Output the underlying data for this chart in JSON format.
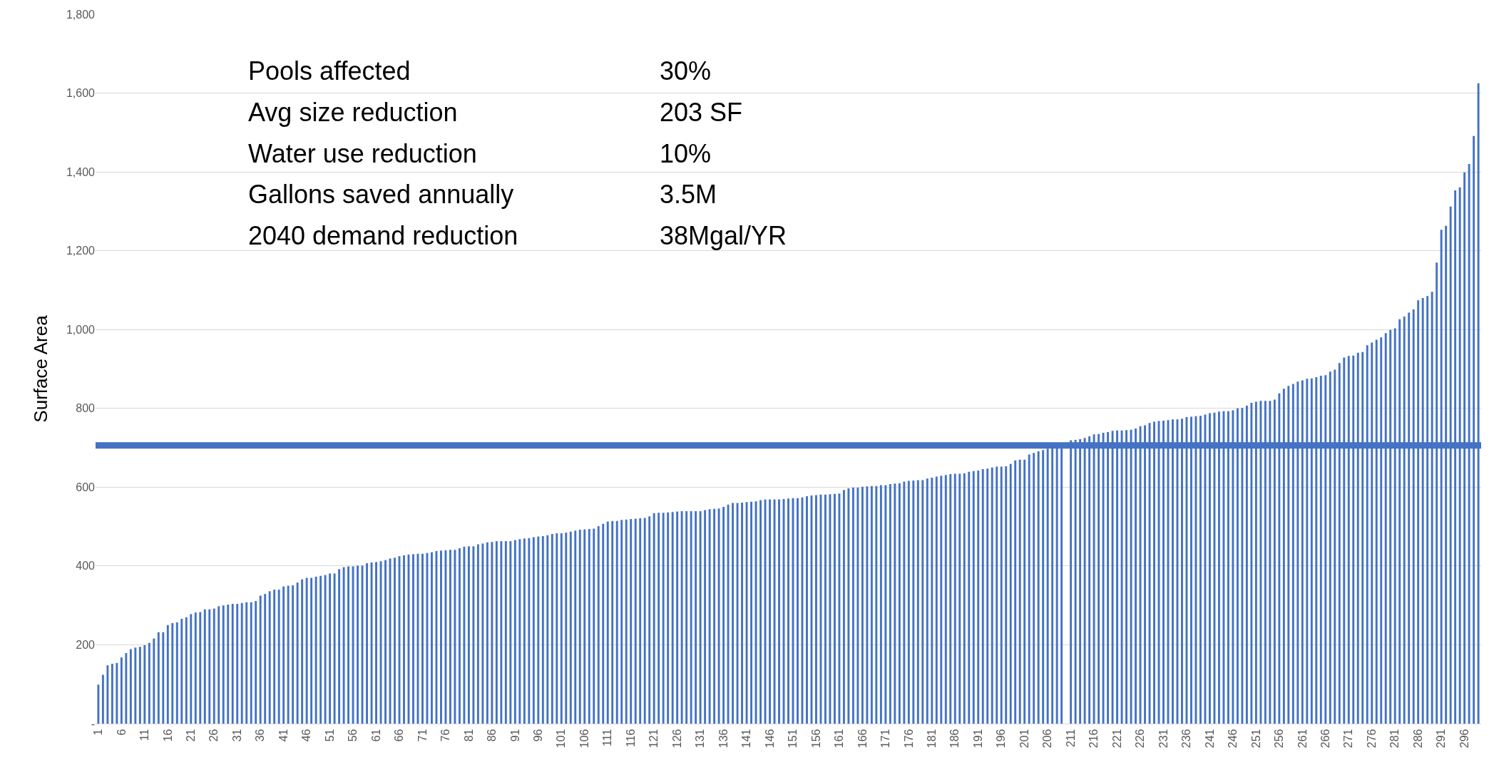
{
  "chart_data": {
    "type": "bar",
    "ylabel": "Surface Area",
    "color": "#4472c4",
    "ylim": [
      0,
      1800
    ],
    "yticks": [
      {
        "value": 0,
        "label": "-"
      },
      200,
      400,
      600,
      800,
      {
        "value": 1000,
        "label": "1,000"
      },
      {
        "value": 1200,
        "label": "1,200"
      },
      {
        "value": 1400,
        "label": "1,400"
      },
      {
        "value": 1600,
        "label": "1,600"
      },
      {
        "value": 1800,
        "label": "1,800"
      }
    ],
    "grid": "y",
    "ref_lines": [
      {
        "axis": "y",
        "value": 706,
        "color": "#4472c4"
      }
    ],
    "annotations": [
      "Pools affected",
      "30%",
      "Avg size reduction",
      "203 SF",
      "Water use reduction",
      "10%",
      "Gallons saved annually",
      "3.5M",
      "2040 demand reduction",
      "38Mgal/YR"
    ],
    "categories": [
      "1",
      null,
      null,
      null,
      null,
      "6",
      null,
      null,
      null,
      null,
      "11",
      null,
      null,
      null,
      null,
      "16",
      null,
      null,
      null,
      null,
      "21",
      null,
      null,
      null,
      null,
      "26",
      null,
      null,
      null,
      null,
      "31",
      null,
      null,
      null,
      null,
      "36",
      null,
      null,
      null,
      null,
      "41",
      null,
      null,
      null,
      null,
      "46",
      null,
      null,
      null,
      null,
      "51",
      null,
      null,
      null,
      null,
      "56",
      null,
      null,
      null,
      null,
      "61",
      null,
      null,
      null,
      null,
      "66",
      null,
      null,
      null,
      null,
      "71",
      null,
      null,
      null,
      null,
      "76",
      null,
      null,
      null,
      null,
      "81",
      null,
      null,
      null,
      null,
      "86",
      null,
      null,
      null,
      null,
      "91",
      null,
      null,
      null,
      null,
      "96",
      null,
      null,
      null,
      null,
      "101",
      null,
      null,
      null,
      null,
      "106",
      null,
      null,
      null,
      null,
      "111",
      null,
      null,
      null,
      null,
      "116",
      null,
      null,
      null,
      null,
      "121",
      null,
      null,
      null,
      null,
      "126",
      null,
      null,
      null,
      null,
      "131",
      null,
      null,
      null,
      null,
      "136",
      null,
      null,
      null,
      null,
      "141",
      null,
      null,
      null,
      null,
      "146",
      null,
      null,
      null,
      null,
      "151",
      null,
      null,
      null,
      null,
      "156",
      null,
      null,
      null,
      null,
      "161",
      null,
      null,
      null,
      null,
      "166",
      null,
      null,
      null,
      null,
      "171",
      null,
      null,
      null,
      null,
      "176",
      null,
      null,
      null,
      null,
      "181",
      null,
      null,
      null,
      null,
      "186",
      null,
      null,
      null,
      null,
      "191",
      null,
      null,
      null,
      null,
      "196",
      null,
      null,
      null,
      null,
      "201",
      null,
      null,
      null,
      null,
      "206",
      null,
      null,
      null,
      null,
      "211",
      null,
      null,
      null,
      null,
      "216",
      null,
      null,
      null,
      null,
      "221",
      null,
      null,
      null,
      null,
      "226",
      null,
      null,
      null,
      null,
      "231",
      null,
      null,
      null,
      null,
      "236",
      null,
      null,
      null,
      null,
      "241",
      null,
      null,
      null,
      null,
      "246",
      null,
      null,
      null,
      null,
      "251",
      null,
      null,
      null,
      null,
      "256",
      null,
      null,
      null,
      null,
      "261",
      null,
      null,
      null,
      null,
      "266",
      null,
      null,
      null,
      null,
      "271",
      null,
      null,
      null,
      null,
      "276",
      null,
      null,
      null,
      null,
      "281",
      null,
      null,
      null,
      null,
      "286",
      null,
      null,
      null,
      null,
      "291",
      null,
      null,
      null,
      null,
      "296",
      null,
      null,
      null
    ],
    "values": [
      99,
      124,
      148,
      152,
      154,
      168,
      179,
      189,
      193,
      195,
      199,
      205,
      216,
      232,
      232,
      250,
      255,
      257,
      266,
      270,
      278,
      282,
      283,
      290,
      290,
      292,
      298,
      300,
      302,
      304,
      304,
      306,
      308,
      308,
      311,
      325,
      329,
      336,
      340,
      340,
      348,
      350,
      351,
      358,
      366,
      370,
      370,
      373,
      375,
      377,
      381,
      381,
      392,
      397,
      399,
      399,
      401,
      401,
      407,
      409,
      410,
      412,
      415,
      419,
      421,
      425,
      427,
      429,
      430,
      431,
      431,
      433,
      435,
      438,
      439,
      440,
      441,
      441,
      445,
      449,
      450,
      450,
      455,
      457,
      460,
      461,
      463,
      463,
      463,
      463,
      466,
      468,
      470,
      471,
      473,
      475,
      476,
      478,
      481,
      483,
      483,
      485,
      487,
      490,
      492,
      493,
      494,
      495,
      501,
      507,
      513,
      514,
      514,
      517,
      518,
      519,
      520,
      521,
      522,
      526,
      534,
      535,
      535,
      536,
      537,
      538,
      539,
      539,
      539,
      539,
      539,
      542,
      544,
      545,
      546,
      550,
      556,
      560,
      560,
      561,
      562,
      563,
      564,
      567,
      569,
      569,
      569,
      569,
      570,
      571,
      572,
      572,
      574,
      577,
      579,
      580,
      581,
      581,
      582,
      583,
      584,
      593,
      597,
      599,
      599,
      601,
      602,
      603,
      603,
      605,
      605,
      608,
      609,
      610,
      614,
      616,
      617,
      618,
      618,
      622,
      624,
      627,
      629,
      631,
      633,
      634,
      634,
      635,
      639,
      641,
      642,
      646,
      647,
      650,
      652,
      652,
      653,
      659,
      668,
      670,
      670,
      683,
      687,
      691,
      694,
      698,
      701,
      704,
      707,
      null,
      719,
      720,
      722,
      725,
      729,
      734,
      735,
      738,
      740,
      743,
      744,
      744,
      745,
      746,
      749,
      755,
      757,
      763,
      766,
      768,
      769,
      770,
      772,
      772,
      774,
      778,
      779,
      780,
      781,
      784,
      788,
      789,
      792,
      793,
      793,
      795,
      800,
      801,
      807,
      814,
      817,
      819,
      819,
      819,
      822,
      838,
      850,
      857,
      862,
      868,
      871,
      875,
      876,
      879,
      883,
      884,
      893,
      898,
      915,
      929,
      933,
      934,
      941,
      943,
      960,
      967,
      974,
      980,
      991,
      999,
      1003,
      1026,
      1033,
      1043,
      1051,
      1074,
      1080,
      1085,
      1096,
      1170,
      1253,
      1263,
      1312,
      1353,
      1361,
      1399,
      1420,
      1491,
      1625
    ]
  }
}
